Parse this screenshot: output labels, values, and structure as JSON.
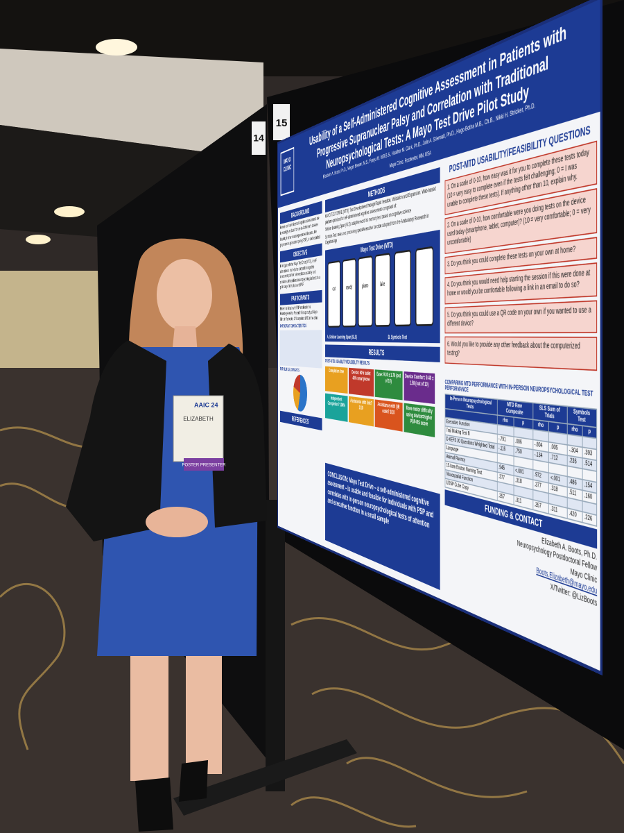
{
  "boards": [
    "14",
    "15"
  ],
  "badge": {
    "event": "AAIC 24",
    "name": "ELIZABETH",
    "role": "POSTER PRESENTER"
  },
  "poster": {
    "logo": "MAYO CLINIC",
    "title": "Usability of a Self-Administered Cognitive Assessment in Patients with Progressive Supranuclear Palsy and Correlation with Traditional Neuropsychological Tests: A Mayo Test Drive Pilot Study",
    "authors": "Elizabeth A. Boots, Ph.D., Megan Brewer, M.S., Fanyu M. M.B.B.S., Heather M. Clark, Ph.D., Julie A. Stierwalt, Ph.D., Hugo Botha M.B., Ch.B., Nikki H. Stricker, Ph.D.",
    "affiliation": "Mayo Clinic, Rochester, MN, USA",
    "background": {
      "heading": "BACKGROUND",
      "items": [
        "Remote, self-administered cognitive assessments are increasingly validated for use in Alzheimer's disease",
        "Usability in other neurodegenerative diseases, like progressive supranuclear palsy (PSP), is understudied"
      ]
    },
    "objective": {
      "heading": "OBJECTIVE",
      "text": "Investigate whether Mayo Test Drive (MTD), a self-administered, multi-device compatible cognitive assessment platform, demonstrates usability and correlates with traditional neuropsychological tests in a pilot study of individuals with PSP"
    },
    "participants": {
      "heading": "PARTICIPANTS",
      "text": "Eleven individuals with PSP enrolled in the Neurodegenerative Research Group study at Mayo Clinic in Rochester, MN completed MTD in the clinic",
      "subheadings": [
        "PARTICIPANT CHARACTERISTICS",
        "PSP CLINICAL VARIANTS"
      ]
    },
    "references": {
      "heading": "REFERENCES"
    },
    "methods": {
      "heading": "METHODS",
      "items": [
        "MAYO TEST DRIVE (MTD): Test Development through Rapid Iteration, Validation and Expansion. Web-based platform optimized for self-administered cognitive assessment comprised of:",
        "Stricker Learning Span (SLS): adaptive word list memory test based on cognitive science",
        "Symbols Test: measures processing speed/executive function adapted from the Ambulatory Research in Cognition App"
      ],
      "figure_title": "Mayo Test Drive (MTD)",
      "words": [
        "cat",
        "candy",
        "piano",
        "lake"
      ],
      "figure_labels": [
        "A. Stricker Learning Span (SLS)",
        "B. Symbols Test"
      ]
    },
    "results": {
      "heading": "RESULTS",
      "subheading": "POST-MTD USABILITY/FEASIBILITY RESULTS",
      "boxes": [
        {
          "text": "Completion time",
          "color": "#e8a020"
        },
        {
          "text": "Device: 60% tablet 40% smartphone",
          "color": "#c0392b"
        },
        {
          "text": "Ease: 9.00 ± 1.76 (out of 10)",
          "color": "#2e8b3e"
        },
        {
          "text": "Device Comfort: 9.40 ± 1.58 (out of 10)",
          "color": "#6a2c8c"
        },
        {
          "text": "Independent Completion? 100%",
          "color": "#1aa39a"
        },
        {
          "text": "Assistance with link? 1/10",
          "color": "#e8a020"
        },
        {
          "text": "Assistance with QR code? 3/10",
          "color": "#d9541e"
        },
        {
          "text": "More motor difficulty using device=higher PSP-RS score",
          "color": "#2e8b3e"
        }
      ],
      "table_title": "COMPARING MTD PERFORMANCE WITH IN-PERSON NEUROPSYCHOLOGICAL TEST PERFORMANCE",
      "table": {
        "header": [
          "In-Person Neuropsychological Tests",
          "MTD Raw Composite",
          "SLS Sum of Trials",
          "Symbols Test"
        ],
        "subheader": [
          "",
          "rho",
          "p",
          "rho",
          "p",
          "rho",
          "p"
        ],
        "rows": [
          [
            "Executive Function",
            "",
            "",
            "",
            "",
            "",
            ""
          ],
          [
            "Trail Making Test B",
            "-.791",
            ".006",
            "-.804",
            ".005",
            "-.304",
            ".393"
          ],
          [
            "D-KEFS 20 Questions Weighted Total",
            "-.116",
            ".750",
            "-.134",
            ".712",
            ".235",
            ".514"
          ],
          [
            "Language",
            "",
            "",
            "",
            "",
            "",
            ""
          ],
          [
            "Animal Fluency",
            ".945",
            "<.001",
            ".972",
            "<.001",
            ".486",
            ".154"
          ],
          [
            "15-Item Boston Naming Test",
            ".377",
            ".318",
            ".377",
            ".318",
            ".511",
            ".160"
          ],
          [
            "Visuospatial Function",
            "",
            "",
            "",
            "",
            "",
            ""
          ],
          [
            "UDSP Cube Copy",
            ".357",
            ".311",
            ".357",
            ".311",
            ".420",
            ".226"
          ]
        ]
      }
    },
    "questions": {
      "heading": "POST-MTD USABILITY/FEASIBILITY QUESTIONS",
      "items": [
        "1. On a scale of 0-10, how easy was it for you to complete these tests today (10 = very easy to complete even if the tests felt challenging; 0 = I was unable to complete these tests). If anything other than 10, explain why.",
        "2. On a scale of 0-10, how comfortable were you doing tests on the device used today (smartphone, tablet, computer)? (10 = very comfortable; 0 = very uncomfortable)",
        "3. Do you think you could complete these tests on your own at home?",
        "4. Do you think you would need help starting the session if this were done at home or would you be comfortable following a link in an email to do so?",
        "5. Do you think you could use a QR code on your own if you wanted to use a different device?",
        "6. Would you like to provide any other feedback about the computerized testing?"
      ]
    },
    "conclusion": {
      "label": "CONCLUSION:",
      "text": "Mayo Test Drive – a self-administered cognitive assessment – is usable and feasible for individuals with PSP and correlates with in-person neuropsychological tests of attention and executive function in a small sample"
    },
    "funding": {
      "heading": "FUNDING & CONTACT",
      "contact": [
        "Elizabeth A. Boots, Ph.D.",
        "Neuropsychology Postdoctoral Fellow",
        "Mayo Clinic",
        "Boots.Elizabeth@mayo.edu",
        "X/Twitter: @LizBoots"
      ]
    }
  }
}
